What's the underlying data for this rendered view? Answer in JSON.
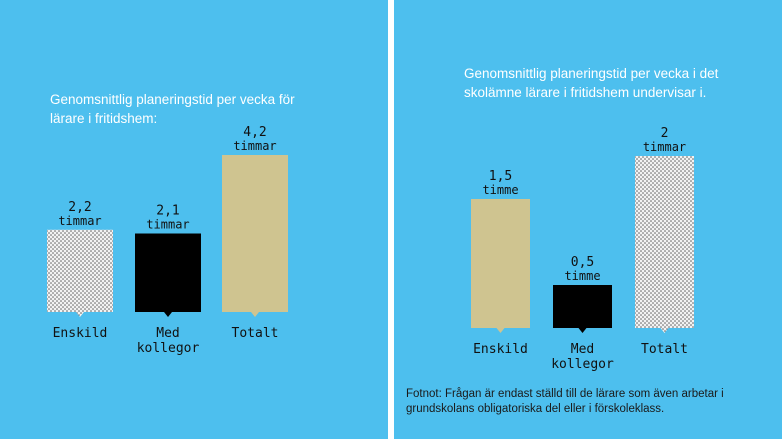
{
  "colors": {
    "background": "#4dbfee",
    "divider": "#ffffff",
    "title_text": "#ffffff",
    "label_text": "#111111",
    "fill_dotted": "#f2f2f2",
    "fill_black": "#000000",
    "fill_tan": "#cfc490"
  },
  "chart_data": [
    {
      "type": "bar",
      "title": "Genomsnittlig planeringstid per vecka för lärare i fritidshem:",
      "categories": [
        "Enskild",
        "Med kollegor",
        "Totalt"
      ],
      "values": [
        2.2,
        2.1,
        4.2
      ],
      "value_labels": [
        "2,2",
        "2,1",
        "4,2"
      ],
      "unit_labels": [
        "timmar",
        "timmar",
        "timmar"
      ],
      "fills": [
        "dotted",
        "black",
        "tan"
      ],
      "ylim": [
        0,
        4.2
      ]
    },
    {
      "type": "bar",
      "title": "Genomsnittlig planeringstid per vecka i det skolämne lärare i fritidshem undervisar i.",
      "categories": [
        "Enskild",
        "Med kollegor",
        "Totalt"
      ],
      "values": [
        1.5,
        0.5,
        2
      ],
      "value_labels": [
        "1,5",
        "0,5",
        "2"
      ],
      "unit_labels": [
        "timme",
        "timme",
        "timmar"
      ],
      "fills": [
        "tan",
        "black",
        "dotted"
      ],
      "ylim": [
        0,
        2
      ]
    }
  ],
  "footnote": "Fotnot: Frågan är endast ställd till de lärare som även arbetar i grundskolans obligatoriska del eller i förskoleklass."
}
